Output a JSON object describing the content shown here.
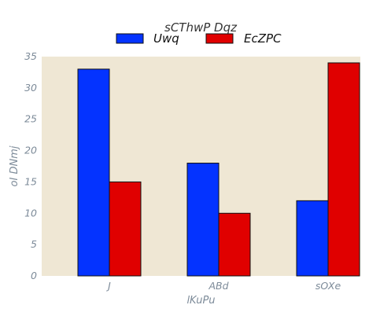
{
  "chart_data": {
    "type": "bar",
    "categories": [
      "J",
      "ABd",
      "sOXe"
    ],
    "series": [
      {
        "name": "Uwq",
        "values": [
          33,
          18,
          12
        ],
        "color": "#0433ff"
      },
      {
        "name": "EcZPC",
        "values": [
          15,
          10,
          34
        ],
        "color": "#e00000"
      }
    ],
    "legend_title": "sCThwP Dqz",
    "legend_placement": "top-center",
    "xlabel": "lKuPu",
    "ylabel": "oI DNmj",
    "ylim": [
      0,
      35
    ],
    "yticks": [
      0,
      5,
      10,
      15,
      20,
      25,
      30,
      35
    ],
    "grid": false,
    "plot_background": "#efe7d4",
    "edge_color": "#111111"
  }
}
